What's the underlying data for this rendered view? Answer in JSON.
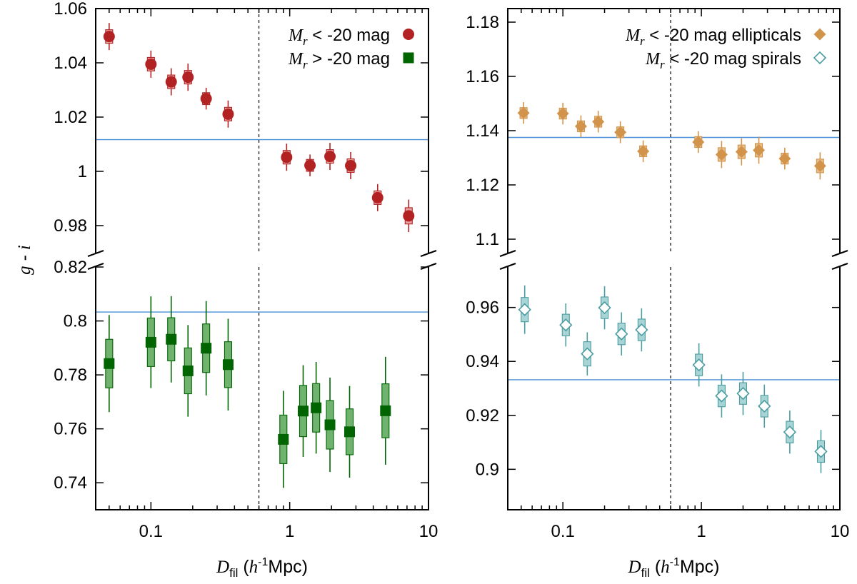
{
  "chart_data": [
    {
      "type": "scatter",
      "panel": "left",
      "title": "",
      "xlabel": {
        "main": "D",
        "sub": "fil",
        "paren_open": " (",
        "h": "h",
        "exp": "-1",
        "unit": "Mpc)"
      },
      "ylabel": "g - i",
      "xscale": "log",
      "xlim": [
        0.04,
        10
      ],
      "xticks": [
        0.1,
        1,
        10
      ],
      "xtick_labels": [
        "0.1",
        "1",
        "10"
      ],
      "vline_x": 0.6,
      "upper": {
        "ylim": [
          0.97,
          1.06
        ],
        "yticks": [
          0.98,
          1.0,
          1.02,
          1.04,
          1.06
        ],
        "ytick_labels": [
          "0.98",
          "1",
          "1.02",
          "1.04",
          "1.06"
        ],
        "hline": 1.0117,
        "series": [
          {
            "name": "M_r < -20 mag",
            "legend": {
              "sym": "M",
              "sub": "r",
              "text": " < -20 mag"
            },
            "marker": "circle",
            "color": "#b22222",
            "box_color": "#e8a0a0",
            "points": [
              {
                "x": 0.05,
                "y": 1.0497,
                "err": 0.005,
                "box": 0.0025
              },
              {
                "x": 0.1,
                "y": 1.0395,
                "err": 0.005,
                "box": 0.0025
              },
              {
                "x": 0.14,
                "y": 1.033,
                "err": 0.005,
                "box": 0.0025
              },
              {
                "x": 0.185,
                "y": 1.0347,
                "err": 0.005,
                "box": 0.0025
              },
              {
                "x": 0.25,
                "y": 1.0268,
                "err": 0.004,
                "box": 0.0022
              },
              {
                "x": 0.36,
                "y": 1.0211,
                "err": 0.005,
                "box": 0.0025
              },
              {
                "x": 0.95,
                "y": 1.0052,
                "err": 0.005,
                "box": 0.0025
              },
              {
                "x": 1.4,
                "y": 1.0022,
                "err": 0.004,
                "box": 0.0022
              },
              {
                "x": 1.95,
                "y": 1.0055,
                "err": 0.005,
                "box": 0.0025
              },
              {
                "x": 2.75,
                "y": 1.0021,
                "err": 0.005,
                "box": 0.0025
              },
              {
                "x": 4.3,
                "y": 0.9903,
                "err": 0.005,
                "box": 0.0025
              },
              {
                "x": 7.2,
                "y": 0.9836,
                "err": 0.006,
                "box": 0.003
              }
            ]
          }
        ]
      },
      "lower": {
        "ylim": [
          0.73,
          0.82
        ],
        "yticks": [
          0.74,
          0.76,
          0.78,
          0.8,
          0.82
        ],
        "ytick_labels": [
          "0.74",
          "0.76",
          "0.78",
          "0.8",
          "0.82"
        ],
        "hline": 0.8033,
        "series": [
          {
            "name": "M_r > -20 mag",
            "legend": {
              "sym": "M",
              "sub": "r",
              "text": " > -20 mag"
            },
            "marker": "square",
            "color": "#006400",
            "box_color": "#6fb36f",
            "points": [
              {
                "x": 0.05,
                "y": 0.7842,
                "err": 0.018,
                "box": 0.009
              },
              {
                "x": 0.1,
                "y": 0.7921,
                "err": 0.017,
                "box": 0.009
              },
              {
                "x": 0.14,
                "y": 0.7932,
                "err": 0.016,
                "box": 0.008
              },
              {
                "x": 0.185,
                "y": 0.7815,
                "err": 0.017,
                "box": 0.0085
              },
              {
                "x": 0.25,
                "y": 0.7899,
                "err": 0.0175,
                "box": 0.009
              },
              {
                "x": 0.36,
                "y": 0.7838,
                "err": 0.017,
                "box": 0.0085
              },
              {
                "x": 0.9,
                "y": 0.7561,
                "err": 0.018,
                "box": 0.009
              },
              {
                "x": 1.25,
                "y": 0.7666,
                "err": 0.017,
                "box": 0.0095
              },
              {
                "x": 1.55,
                "y": 0.7678,
                "err": 0.017,
                "box": 0.009
              },
              {
                "x": 1.95,
                "y": 0.7615,
                "err": 0.0175,
                "box": 0.009
              },
              {
                "x": 2.7,
                "y": 0.7589,
                "err": 0.017,
                "box": 0.0085
              },
              {
                "x": 4.9,
                "y": 0.7667,
                "err": 0.02,
                "box": 0.01
              }
            ]
          }
        ]
      }
    },
    {
      "type": "scatter",
      "panel": "right",
      "title": "",
      "xlabel": {
        "main": "D",
        "sub": "fil",
        "paren_open": " (",
        "h": "h",
        "exp": "-1",
        "unit": "Mpc)"
      },
      "ylabel": "",
      "xscale": "log",
      "xlim": [
        0.04,
        10
      ],
      "xticks": [
        0.1,
        1,
        10
      ],
      "xtick_labels": [
        "0.1",
        "1",
        "10"
      ],
      "vline_x": 0.6,
      "upper": {
        "ylim": [
          1.095,
          1.185
        ],
        "yticks": [
          1.1,
          1.12,
          1.14,
          1.16,
          1.18
        ],
        "ytick_labels": [
          "1.1",
          "1.12",
          "1.14",
          "1.16",
          "1.18"
        ],
        "hline": 1.1375,
        "series": [
          {
            "name": "M_r < -20 mag ellipticals",
            "legend": {
              "sym": "M",
              "sub": "r",
              "text": " < -20 mag ellipticals"
            },
            "marker": "diamond",
            "color": "#d2944a",
            "box_color": "#e7bf8e",
            "points": [
              {
                "x": 0.052,
                "y": 1.1465,
                "err": 0.004,
                "box": 0.002
              },
              {
                "x": 0.1,
                "y": 1.1463,
                "err": 0.004,
                "box": 0.002
              },
              {
                "x": 0.135,
                "y": 1.1416,
                "err": 0.004,
                "box": 0.002
              },
              {
                "x": 0.18,
                "y": 1.1433,
                "err": 0.004,
                "box": 0.002
              },
              {
                "x": 0.26,
                "y": 1.1394,
                "err": 0.004,
                "box": 0.002
              },
              {
                "x": 0.38,
                "y": 1.1324,
                "err": 0.004,
                "box": 0.002
              },
              {
                "x": 0.95,
                "y": 1.1358,
                "err": 0.004,
                "box": 0.002
              },
              {
                "x": 1.4,
                "y": 1.1312,
                "err": 0.005,
                "box": 0.0025
              },
              {
                "x": 1.95,
                "y": 1.1322,
                "err": 0.005,
                "box": 0.0025
              },
              {
                "x": 2.6,
                "y": 1.1328,
                "err": 0.005,
                "box": 0.0025
              },
              {
                "x": 4.0,
                "y": 1.1297,
                "err": 0.004,
                "box": 0.002
              },
              {
                "x": 7.2,
                "y": 1.127,
                "err": 0.005,
                "box": 0.0025
              }
            ]
          }
        ]
      },
      "lower": {
        "ylim": [
          0.885,
          0.975
        ],
        "yticks": [
          0.9,
          0.92,
          0.94,
          0.96
        ],
        "ytick_labels": [
          "0.9",
          "0.92",
          "0.94",
          "0.96"
        ],
        "hline": 0.9332,
        "series": [
          {
            "name": "M_r < -20 mag spirals",
            "legend": {
              "sym": "M",
              "sub": "r",
              "text": " < -20 mag spirals"
            },
            "marker": "diamond-open",
            "color": "#4a9da0",
            "box_color": "#a9d4d6",
            "points": [
              {
                "x": 0.053,
                "y": 0.9592,
                "err": 0.009,
                "box": 0.0045
              },
              {
                "x": 0.105,
                "y": 0.9535,
                "err": 0.008,
                "box": 0.004
              },
              {
                "x": 0.15,
                "y": 0.9428,
                "err": 0.008,
                "box": 0.0045
              },
              {
                "x": 0.2,
                "y": 0.9599,
                "err": 0.008,
                "box": 0.004
              },
              {
                "x": 0.265,
                "y": 0.9502,
                "err": 0.008,
                "box": 0.004
              },
              {
                "x": 0.37,
                "y": 0.9517,
                "err": 0.008,
                "box": 0.004
              },
              {
                "x": 0.96,
                "y": 0.9387,
                "err": 0.008,
                "box": 0.004
              },
              {
                "x": 1.4,
                "y": 0.9272,
                "err": 0.008,
                "box": 0.004
              },
              {
                "x": 2.0,
                "y": 0.9281,
                "err": 0.008,
                "box": 0.004
              },
              {
                "x": 2.85,
                "y": 0.9234,
                "err": 0.008,
                "box": 0.004
              },
              {
                "x": 4.35,
                "y": 0.9138,
                "err": 0.008,
                "box": 0.004
              },
              {
                "x": 7.3,
                "y": 0.9066,
                "err": 0.008,
                "box": 0.004
              }
            ]
          }
        ]
      }
    }
  ],
  "colors": {
    "hline": "#4a90d9",
    "axis": "#000000"
  }
}
